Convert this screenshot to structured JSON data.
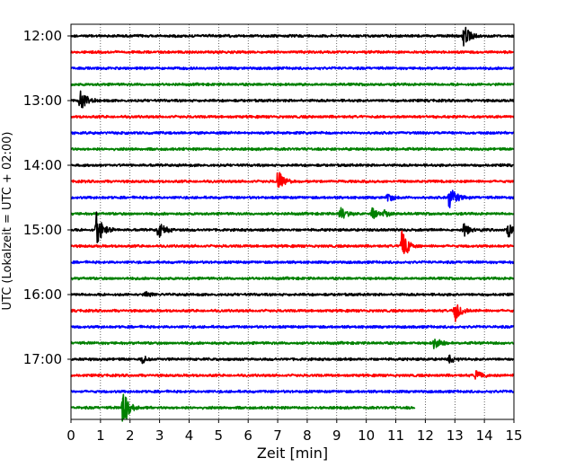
{
  "chart_data": {
    "type": "line",
    "title": "",
    "xlabel": "Zeit  [min]",
    "ylabel": "UTC (Lokalzeit = UTC + 02:00)",
    "xlim": [
      0,
      15
    ],
    "x_ticks": [
      "0",
      "1",
      "2",
      "3",
      "4",
      "5",
      "6",
      "7",
      "8",
      "9",
      "10",
      "11",
      "12",
      "13",
      "14",
      "15"
    ],
    "y_tick_labels": [
      "12:00",
      "13:00",
      "14:00",
      "15:00",
      "16:00",
      "17:00"
    ],
    "grid": "vertical dotted",
    "trace_interval_min": 15,
    "colors": [
      "#000000",
      "#ff0000",
      "#0000ff",
      "#008000"
    ],
    "traces": [
      {
        "start": "12:00",
        "color": "#000000",
        "end_min": 15,
        "events": [
          {
            "t": 13.3,
            "amp": 1.0
          }
        ]
      },
      {
        "start": "12:15",
        "color": "#ff0000",
        "end_min": 15,
        "events": []
      },
      {
        "start": "12:30",
        "color": "#0000ff",
        "end_min": 15,
        "events": []
      },
      {
        "start": "12:45",
        "color": "#008000",
        "end_min": 15,
        "events": []
      },
      {
        "start": "13:00",
        "color": "#000000",
        "end_min": 15,
        "events": [
          {
            "t": 0.3,
            "amp": 0.9
          }
        ]
      },
      {
        "start": "13:15",
        "color": "#ff0000",
        "end_min": 15,
        "events": []
      },
      {
        "start": "13:30",
        "color": "#0000ff",
        "end_min": 15,
        "events": []
      },
      {
        "start": "13:45",
        "color": "#008000",
        "end_min": 15,
        "events": []
      },
      {
        "start": "14:00",
        "color": "#000000",
        "end_min": 15,
        "events": []
      },
      {
        "start": "14:15",
        "color": "#ff0000",
        "end_min": 15,
        "events": [
          {
            "t": 7.0,
            "amp": 1.0
          }
        ]
      },
      {
        "start": "14:30",
        "color": "#0000ff",
        "end_min": 15,
        "events": [
          {
            "t": 10.7,
            "amp": 0.4
          },
          {
            "t": 12.8,
            "amp": 1.2
          }
        ]
      },
      {
        "start": "14:45",
        "color": "#008000",
        "end_min": 15,
        "events": [
          {
            "t": 9.1,
            "amp": 0.6
          },
          {
            "t": 10.2,
            "amp": 0.5
          },
          {
            "t": 10.6,
            "amp": 0.4
          }
        ]
      },
      {
        "start": "15:00",
        "color": "#000000",
        "end_min": 15,
        "events": [
          {
            "t": 0.85,
            "amp": 1.5
          },
          {
            "t": 2.95,
            "amp": 0.8
          },
          {
            "t": 13.3,
            "amp": 0.6
          },
          {
            "t": 14.8,
            "amp": 0.7
          }
        ]
      },
      {
        "start": "15:15",
        "color": "#ff0000",
        "end_min": 15,
        "events": [
          {
            "t": 11.2,
            "amp": 1.3
          }
        ]
      },
      {
        "start": "15:30",
        "color": "#0000ff",
        "end_min": 15,
        "events": []
      },
      {
        "start": "15:45",
        "color": "#008000",
        "end_min": 15,
        "events": []
      },
      {
        "start": "16:00",
        "color": "#000000",
        "end_min": 15,
        "events": [
          {
            "t": 2.5,
            "amp": 0.3
          }
        ]
      },
      {
        "start": "16:15",
        "color": "#ff0000",
        "end_min": 15,
        "events": [
          {
            "t": 13.0,
            "amp": 1.0
          }
        ]
      },
      {
        "start": "16:30",
        "color": "#0000ff",
        "end_min": 15,
        "events": []
      },
      {
        "start": "16:45",
        "color": "#008000",
        "end_min": 15,
        "events": [
          {
            "t": 12.3,
            "amp": 0.6
          }
        ]
      },
      {
        "start": "17:00",
        "color": "#000000",
        "end_min": 15,
        "events": [
          {
            "t": 2.4,
            "amp": 0.4
          },
          {
            "t": 12.8,
            "amp": 0.4
          }
        ]
      },
      {
        "start": "17:15",
        "color": "#ff0000",
        "end_min": 15,
        "events": [
          {
            "t": 13.7,
            "amp": 0.5
          }
        ]
      },
      {
        "start": "17:30",
        "color": "#0000ff",
        "end_min": 15,
        "events": []
      },
      {
        "start": "17:45",
        "color": "#008000",
        "end_min": 11.65,
        "events": [
          {
            "t": 1.75,
            "amp": 1.6
          }
        ]
      }
    ]
  }
}
